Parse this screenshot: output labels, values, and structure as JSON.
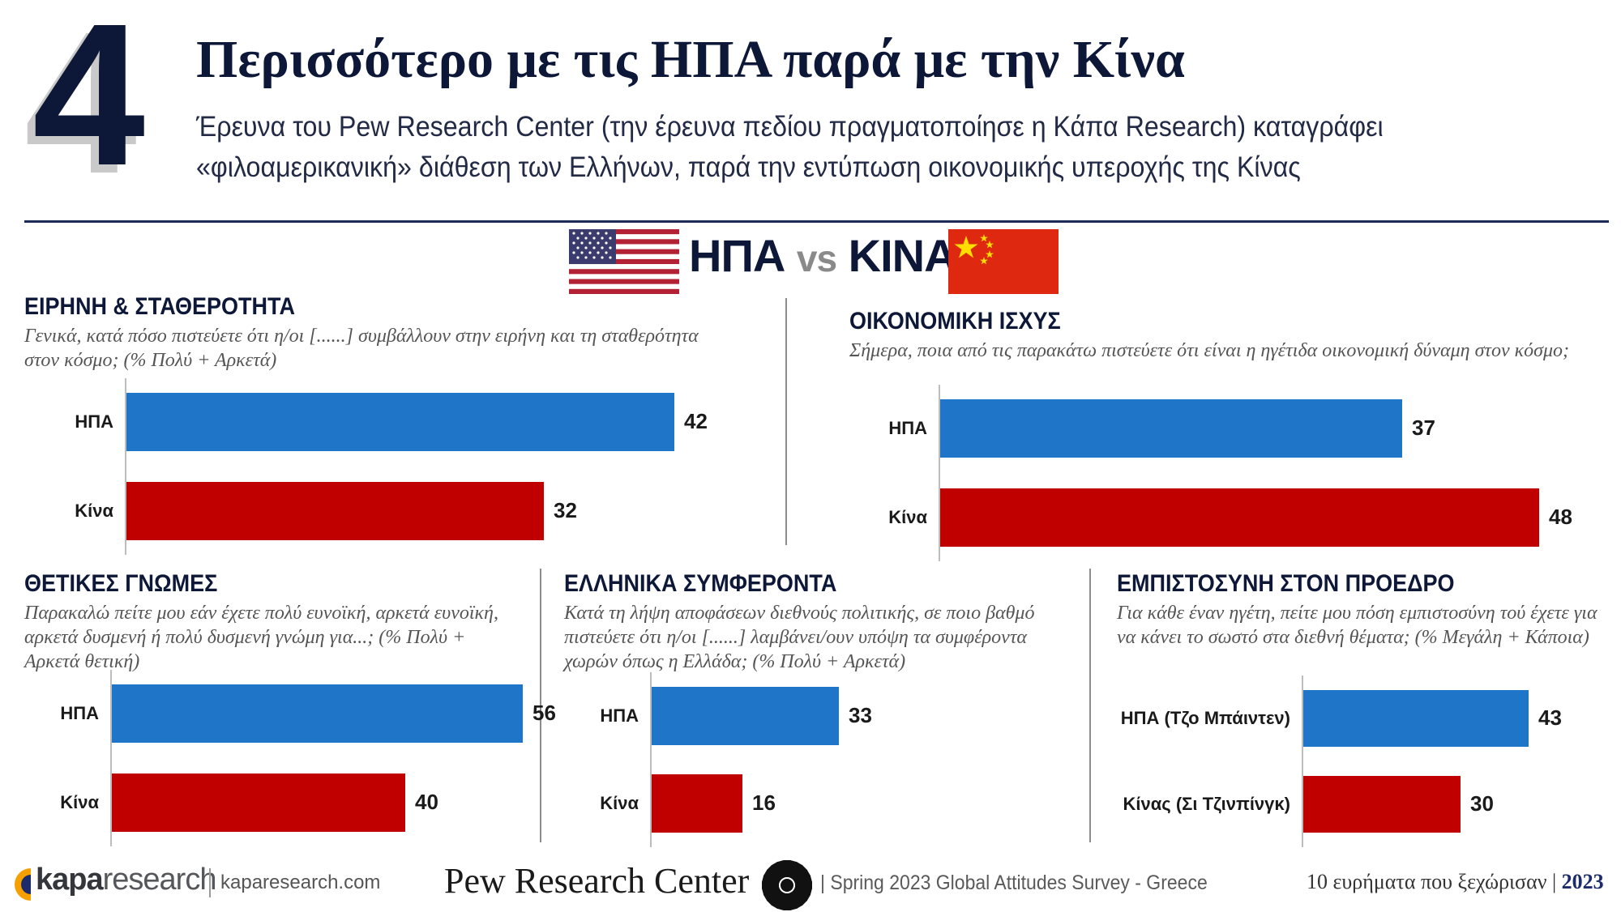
{
  "header": {
    "number": "4",
    "title": "Περισσότερο με τις ΗΠΑ παρά με την Κίνα",
    "subtitle": "Έρευνα του Pew Research Center (την έρευνα πεδίου πραγματοποίησε η Κάπα Research) καταγράφει «φιλοαμερικανική» διάθεση των Ελλήνων, παρά την εντύπωση οικονομικής υπεροχής της Κίνας"
  },
  "versus": {
    "left": "ΗΠΑ",
    "vs": "vs",
    "right": "ΚΙΝΑ",
    "left_flag": "us-flag-icon",
    "right_flag": "china-flag-icon"
  },
  "colors": {
    "us": "#1f75c7",
    "china": "#c00000",
    "navy": "#0d1838"
  },
  "chart_data": [
    {
      "type": "bar",
      "orientation": "horizontal",
      "title": "ΕΙΡΗΝΗ & ΣΤΑΘΕΡΟΤΗΤΑ",
      "question": "Γενικά, κατά πόσο πιστεύετε ότι η/οι [......] συμβάλλουν στην ειρήνη και τη σταθερότητα στον κόσμο; (% Πολύ + Αρκετά)",
      "categories": [
        "ΗΠΑ",
        "Κίνα"
      ],
      "values": [
        42,
        32
      ],
      "xlim": [
        0,
        50
      ]
    },
    {
      "type": "bar",
      "orientation": "horizontal",
      "title": "ΟΙΚΟΝΟΜΙΚΗ ΙΣΧΥΣ",
      "question": "Σήμερα, ποια από τις παρακάτω πιστεύετε ότι είναι η ηγέτιδα οικονομική δύναμη στον κόσμο;",
      "categories": [
        "ΗΠΑ",
        "Κίνα"
      ],
      "values": [
        37,
        48
      ],
      "xlim": [
        0,
        50
      ]
    },
    {
      "type": "bar",
      "orientation": "horizontal",
      "title": "ΘΕΤΙΚΕΣ ΓΝΩΜΕΣ",
      "question": "Παρακαλώ πείτε μου εάν έχετε πολύ ευνοϊκή, αρκετά ευνοϊκή, αρκετά δυσμενή ή πολύ δυσμενή γνώμη για...; (% Πολύ + Αρκετά θετική)",
      "categories": [
        "ΗΠΑ",
        "Κίνα"
      ],
      "values": [
        56,
        40
      ],
      "xlim": [
        0,
        65
      ]
    },
    {
      "type": "bar",
      "orientation": "horizontal",
      "title": "ΕΛΛΗΝΙΚΑ ΣΥΜΦΕΡΟΝΤΑ",
      "question": "Κατά τη λήψη αποφάσεων διεθνούς πολιτικής,  σε ποιο βαθμό πιστεύετε ότι η/οι [......] λαμβάνει/ουν υπόψη τα συμφέροντα χωρών όπως η Ελλάδα; (% Πολύ + Αρκετά)",
      "categories": [
        "ΗΠΑ",
        "Κίνα"
      ],
      "values": [
        33,
        16
      ],
      "xlim": [
        0,
        50
      ]
    },
    {
      "type": "bar",
      "orientation": "horizontal",
      "title": "ΕΜΠΙΣΤΟΣΥΝΗ ΣΤΟΝ ΠΡΟΕΔΡΟ",
      "question": "Για κάθε έναν ηγέτη, πείτε  μου πόση εμπιστοσύνη τού έχετε για να κάνει το σωστό στα διεθνή θέματα; (% Μεγάλη + Κάποια)",
      "categories": [
        "ΗΠΑ (Τζο Μπάιντεν)",
        "Κίνας (Σι Τζινπίνγκ)"
      ],
      "values": [
        43,
        30
      ],
      "xlim": [
        0,
        50
      ]
    }
  ],
  "footer": {
    "kapa_brand_bold": "kapa",
    "kapa_brand_light": "research",
    "kapa_url": "kaparesearch.com",
    "pew": "Pew Research Center",
    "pew_icon": "pew-sunburst-icon",
    "survey": "| Spring 2023 Global Attitudes Survey - Greece",
    "findings": "10 ευρήματα που ξεχώρισαν |",
    "year": "2023"
  }
}
